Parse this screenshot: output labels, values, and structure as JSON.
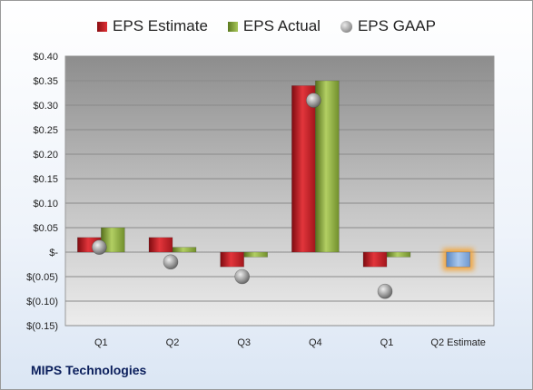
{
  "company": "MIPS Technologies",
  "legend": {
    "estimate": "EPS Estimate",
    "actual": "EPS Actual",
    "gaap": "EPS GAAP"
  },
  "chart_data": {
    "type": "bar",
    "title": "",
    "categories": [
      "Q1",
      "Q2",
      "Q3",
      "Q4",
      "Q1",
      "Q2 Estimate"
    ],
    "series": [
      {
        "name": "EPS Estimate",
        "values": [
          0.03,
          0.03,
          -0.03,
          0.34,
          -0.03,
          null
        ],
        "color": "#c8232a"
      },
      {
        "name": "EPS Actual",
        "values": [
          0.05,
          0.01,
          -0.01,
          0.35,
          -0.01,
          null
        ],
        "color": "#8fb044"
      },
      {
        "name": "EPS GAAP",
        "values": [
          0.01,
          -0.02,
          -0.05,
          0.31,
          -0.08,
          null
        ],
        "color": "#9a9a9a"
      },
      {
        "name": "Q2 Estimate",
        "values": [
          null,
          null,
          null,
          null,
          null,
          -0.03
        ],
        "color": "#7fa7d8"
      }
    ],
    "yticks": [
      "$0.40",
      "$0.35",
      "$0.30",
      "$0.25",
      "$0.20",
      "$0.15",
      "$0.10",
      "$0.05",
      "$-",
      "$(0.05)",
      "$(0.10)",
      "$(0.15)"
    ],
    "ytick_values": [
      0.4,
      0.35,
      0.3,
      0.25,
      0.2,
      0.15,
      0.1,
      0.05,
      0.0,
      -0.05,
      -0.1,
      -0.15
    ],
    "ylim": [
      -0.15,
      0.4
    ],
    "grid": true,
    "legend_position": "top"
  }
}
